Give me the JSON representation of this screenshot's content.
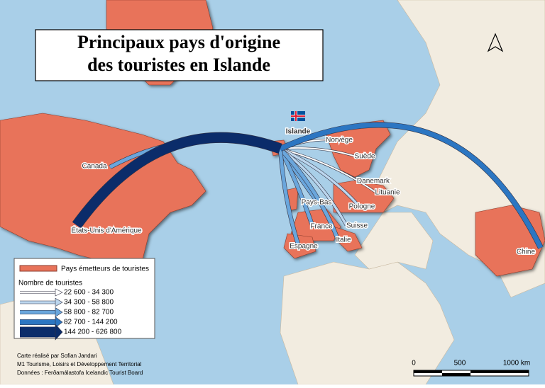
{
  "title": [
    "Principaux pays d'origine",
    "des touristes en Islande"
  ],
  "hub": "Islande",
  "flows": [
    {
      "label": "États-Unis d'Amérique",
      "class": 4
    },
    {
      "label": "Canada",
      "class": 2
    },
    {
      "label": "Chine",
      "class": 3
    },
    {
      "label": "Norvège",
      "class": 0
    },
    {
      "label": "Suède",
      "class": 0
    },
    {
      "label": "Danemark",
      "class": 0
    },
    {
      "label": "Lituanie",
      "class": 0
    },
    {
      "label": "Pologne",
      "class": 1
    },
    {
      "label": "Pays-Bas",
      "class": 2
    },
    {
      "label": "France",
      "class": 2
    },
    {
      "label": "Suisse",
      "class": 1
    },
    {
      "label": "Italie",
      "class": 2
    },
    {
      "label": "Espagne",
      "class": 2
    }
  ],
  "legend": {
    "countries": "Pays émetteurs de touristes",
    "title": "Nombre de touristes",
    "classes": [
      {
        "range": "22 600 - 34 300",
        "color": "#ffffff"
      },
      {
        "range": "34 300 - 58 800",
        "color": "#bcd6ee"
      },
      {
        "range": "58 800 - 82 700",
        "color": "#6aa6dc"
      },
      {
        "range": "82 700 - 144 200",
        "color": "#2c76c2"
      },
      {
        "range": "144 200 - 626 800",
        "color": "#0b2c6a"
      }
    ]
  },
  "credits": [
    "Carte réalisé par Sofian Jandari",
    "M1 Tourisme, Loisirs et Développement Territorial",
    "Données : Ferðamálastofa Icelandic Tourist Board"
  ],
  "scale": [
    "0",
    "500",
    "1000 km"
  ]
}
